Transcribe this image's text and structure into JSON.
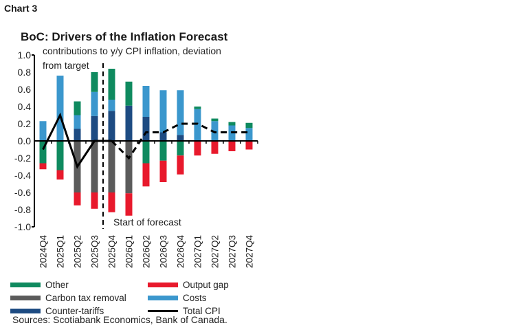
{
  "chart_label": "Chart 3",
  "chart_data": {
    "type": "bar",
    "stacked": true,
    "title": "BoC: Drivers of the Inflation Forecast",
    "subtitle_lines": [
      "contributions to y/y CPI inflation, deviation",
      "from target"
    ],
    "categories": [
      "2024Q4",
      "2025Q1",
      "2025Q2",
      "2025Q3",
      "2025Q4",
      "2026Q1",
      "2026Q2",
      "2026Q3",
      "2026Q4",
      "2027Q1",
      "2027Q2",
      "2027Q3",
      "2027Q4"
    ],
    "ylim": [
      -1.0,
      1.0
    ],
    "yticks": [
      "1.0",
      "0.8",
      "0.6",
      "0.4",
      "0.2",
      "0.0",
      "-0.2",
      "-0.4",
      "-0.6",
      "-0.8",
      "-1.0"
    ],
    "series": [
      {
        "name": "Counter-tariffs",
        "color": "#1d4b82",
        "values": [
          0,
          0,
          0.14,
          0.29,
          0.35,
          0.41,
          0.28,
          0.1,
          0.07,
          0,
          0,
          0,
          0
        ]
      },
      {
        "name": "Costs",
        "color": "#3b97cd",
        "values": [
          0.23,
          0.76,
          0.16,
          0.28,
          0.13,
          0,
          0.36,
          0.49,
          0.52,
          0.37,
          0.23,
          0.18,
          0.15
        ]
      },
      {
        "name": "Other",
        "color": "#0f8a5f",
        "values": [
          -0.26,
          -0.34,
          0.16,
          0.23,
          0.36,
          0.28,
          -0.26,
          -0.23,
          -0.17,
          0.03,
          0.03,
          0.04,
          0.06
        ]
      },
      {
        "name": "Carbon tax removal",
        "color": "#5b5b5b",
        "values": [
          0,
          0,
          -0.6,
          -0.6,
          -0.6,
          -0.61,
          0,
          0,
          0,
          0,
          0,
          0,
          0
        ]
      },
      {
        "name": "Output gap",
        "color": "#e8192c",
        "values": [
          -0.07,
          -0.11,
          -0.15,
          -0.19,
          -0.23,
          -0.26,
          -0.27,
          -0.25,
          -0.22,
          -0.17,
          -0.15,
          -0.12,
          -0.1
        ]
      }
    ],
    "line_series": {
      "name": "Total CPI",
      "color": "#000000",
      "values": [
        -0.1,
        0.3,
        -0.3,
        0.0,
        0.0,
        -0.2,
        0.1,
        0.1,
        0.2,
        0.2,
        0.1,
        0.1,
        0.1
      ],
      "forecast_from": "2025Q4",
      "forecast_style": "dashed"
    },
    "annotation": "Start of forecast",
    "grid": false,
    "legend": {
      "placement": "bottom",
      "items": [
        {
          "label": "Other",
          "color": "#0f8a5f",
          "kind": "bar"
        },
        {
          "label": "Output gap",
          "color": "#e8192c",
          "kind": "bar"
        },
        {
          "label": "Carbon tax removal",
          "color": "#5b5b5b",
          "kind": "bar"
        },
        {
          "label": "Costs",
          "color": "#3b97cd",
          "kind": "bar"
        },
        {
          "label": "Counter-tariffs",
          "color": "#1d4b82",
          "kind": "bar"
        },
        {
          "label": "Total CPI",
          "color": "#000000",
          "kind": "line"
        }
      ]
    }
  },
  "sources": "Sources: Scotiabank Economics, Bank of Canada."
}
